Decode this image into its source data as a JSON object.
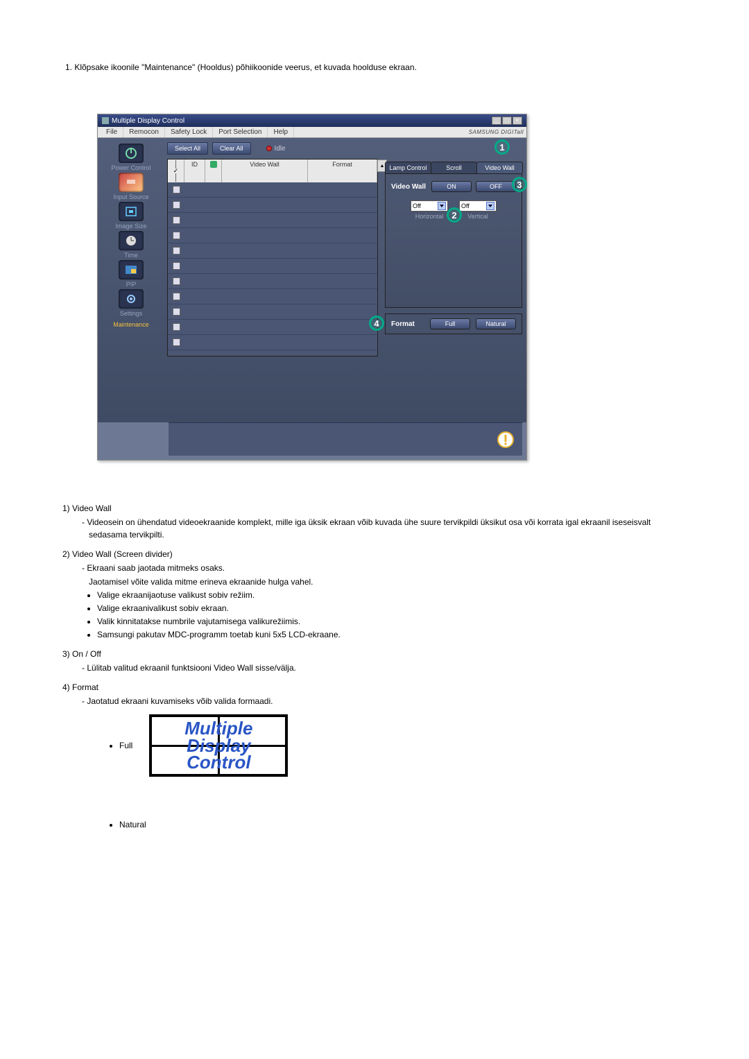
{
  "intro": "1.  Klõpsake ikoonile \"Maintenance\" (Hooldus) põhiikoonide veerus, et kuvada hoolduse ekraan.",
  "window": {
    "title": "Multiple Display Control",
    "menus": [
      "File",
      "Remocon",
      "Safety Lock",
      "Port Selection",
      "Help"
    ],
    "brand": "SAMSUNG DIGITall"
  },
  "sidebar": {
    "items": [
      {
        "label": "Power Control"
      },
      {
        "label": "Input Source"
      },
      {
        "label": "Image Size"
      },
      {
        "label": "Time"
      },
      {
        "label": "PIP"
      },
      {
        "label": "Settings"
      },
      {
        "label": "Maintenance"
      }
    ]
  },
  "center": {
    "select_all": "Select All",
    "clear_all": "Clear All",
    "idle": "Idle",
    "columns": {
      "id": "ID",
      "video_wall": "Video Wall",
      "format": "Format"
    },
    "row_count": 11
  },
  "right": {
    "tabs": [
      "Lamp Control",
      "Scroll",
      "Video Wall"
    ],
    "active_tab_index": 2,
    "vw_label": "Video Wall",
    "on": "ON",
    "off": "OFF",
    "dd_h": {
      "value": "Off",
      "caption": "Horizontal"
    },
    "dd_v": {
      "value": "Off",
      "caption": "Vertical"
    },
    "format_label": "Format",
    "btn_full": "Full",
    "btn_natural": "Natural"
  },
  "callouts": {
    "c1": "1",
    "c2": "2",
    "c3": "3",
    "c4": "4"
  },
  "desc": {
    "n1_head": "1)  Video Wall",
    "n1_body": "Videosein on ühendatud videoekraanide komplekt, mille iga üksik ekraan võib kuvada ühe suure tervikpildi üksikut osa või korrata igal ekraanil iseseisvalt sedasama tervikpilti.",
    "n2_head": "2)  Video Wall (Screen divider)",
    "n2_d1": "Ekraani saab jaotada mitmeks osaks.",
    "n2_d1b": "Jaotamisel võite valida mitme erineva ekraanide hulga vahel.",
    "n2_b1": "Valige ekraanijaotuse valikust sobiv režiim.",
    "n2_b2": "Valige ekraanivalikust sobiv ekraan.",
    "n2_b3": "Valik kinnitatakse numbrile vajutamisega valikurežiimis.",
    "n2_b4": "Samsungi pakutav MDC-programm toetab kuni 5x5 LCD-ekraane.",
    "n3_head": "3)  On / Off",
    "n3_d1": "Lülitab valitud ekraanil funktsiooni Video Wall sisse/välja.",
    "n4_head": "4)  Format",
    "n4_d1": "Jaotatud ekraani kuvamiseks võib valida formaadi.",
    "full_label": "Full",
    "nat_label": "Natural",
    "mdc_l1": "Multiple",
    "mdc_l2": "Display",
    "mdc_l3": "Control"
  }
}
